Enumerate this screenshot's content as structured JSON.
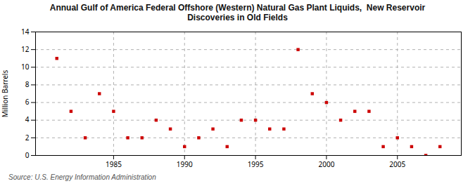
{
  "chart_data": {
    "type": "scatter",
    "title": "Annual Gulf of America Federal Offshore (Western) Natural Gas Plant Liquids,  New Reservoir\nDiscoveries in Old Fields",
    "ylabel": "Million Barrels",
    "annotations": [
      "Source: U.S. Energy Information Administration"
    ],
    "x": [
      1981,
      1982,
      1983,
      1984,
      1985,
      1986,
      1987,
      1988,
      1989,
      1990,
      1991,
      1992,
      1993,
      1994,
      1995,
      1996,
      1997,
      1998,
      1999,
      2000,
      2001,
      2002,
      2003,
      2004,
      2005,
      2006,
      2007,
      2008
    ],
    "values": [
      11,
      5,
      2,
      7,
      5,
      2,
      2,
      4,
      3,
      1,
      2,
      3,
      1,
      4,
      4,
      3,
      3,
      12,
      7,
      6,
      4,
      5,
      5,
      1,
      2,
      1,
      0,
      1
    ],
    "color": "#cc0000",
    "marker": "square",
    "xlim": [
      1979.5,
      2009.5
    ],
    "xticks": [
      1985,
      1990,
      1995,
      2000,
      2005
    ],
    "ylim": [
      0,
      14
    ],
    "yticks": [
      0,
      2,
      4,
      6,
      8,
      10,
      12,
      14
    ],
    "grid": true
  }
}
